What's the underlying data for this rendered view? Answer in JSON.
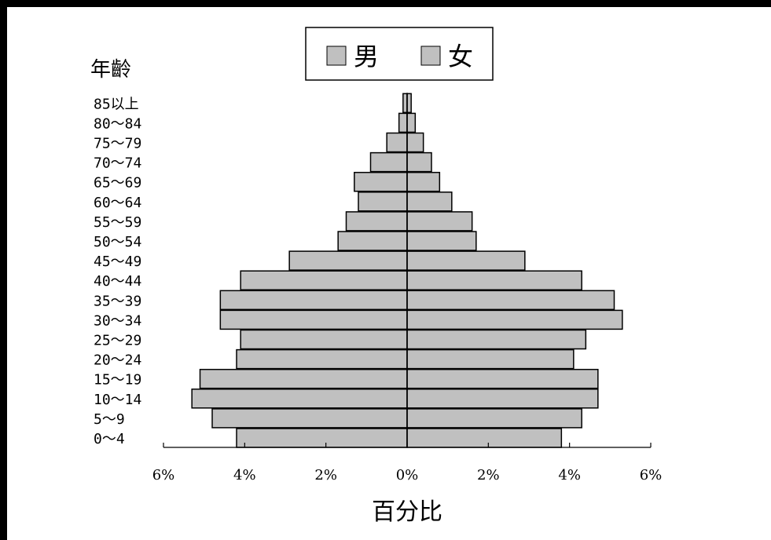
{
  "chart_data": {
    "type": "bar",
    "orientation": "horizontal",
    "layout": "population-pyramid",
    "title": "",
    "ylabel": "年齡",
    "xlabel": "百分比",
    "legend": {
      "placement": "top-center",
      "items": [
        "男",
        "女"
      ]
    },
    "categories": [
      "0～4",
      "5～9",
      "10～14",
      "15～19",
      "20～24",
      "25～29",
      "30～34",
      "35～39",
      "40～44",
      "45～49",
      "50～54",
      "55～59",
      "60～64",
      "65～69",
      "70～74",
      "75～79",
      "80～84",
      "85以上"
    ],
    "series": [
      {
        "name": "男",
        "color": "#C0C0C0",
        "side": "left",
        "values": [
          4.2,
          4.8,
          5.3,
          5.1,
          4.2,
          4.1,
          4.6,
          4.6,
          4.1,
          2.9,
          1.7,
          1.5,
          1.2,
          1.3,
          0.9,
          0.5,
          0.2,
          0.1
        ]
      },
      {
        "name": "女",
        "color": "#C0C0C0",
        "side": "right",
        "values": [
          3.8,
          4.3,
          4.7,
          4.7,
          4.1,
          4.4,
          5.3,
          5.1,
          4.3,
          2.9,
          1.7,
          1.6,
          1.1,
          0.8,
          0.6,
          0.4,
          0.2,
          0.1
        ]
      }
    ],
    "xlim": [
      -6,
      6
    ],
    "xticks": [
      "6%",
      "4%",
      "2%",
      "0%",
      "2%",
      "4%",
      "6%"
    ],
    "grid": false
  }
}
